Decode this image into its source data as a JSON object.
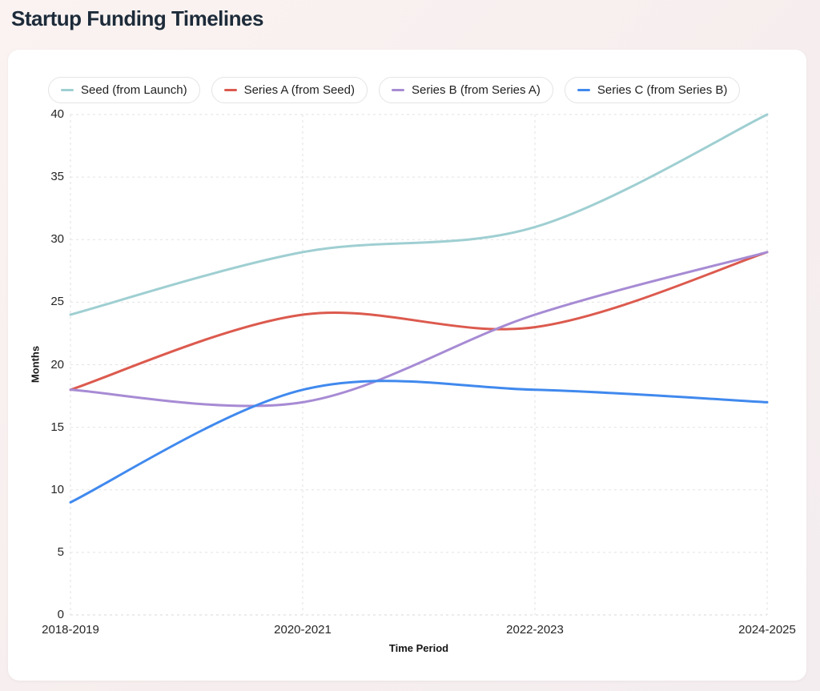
{
  "page": {
    "title": "Startup Funding Timelines",
    "background_color": "#f6eeee",
    "card_background": "#ffffff",
    "title_color": "#1d2b3a",
    "grid_color": "#e2e2e2"
  },
  "legend": {
    "items": [
      {
        "label": "Seed (from Launch)",
        "color": "#9fcfd2"
      },
      {
        "label": "Series A (from Seed)",
        "color": "#dc5a4e"
      },
      {
        "label": "Series B (from Series A)",
        "color": "#a78bd4"
      },
      {
        "label": "Series C (from Series B)",
        "color": "#4089ee"
      }
    ]
  },
  "chart_data": {
    "type": "line",
    "title": "Startup Funding Timelines",
    "categories": [
      "2018-2019",
      "2020-2021",
      "2022-2023",
      "2024-2025"
    ],
    "series": [
      {
        "name": "Seed (from Launch)",
        "color": "#9fcfd2",
        "values": [
          24,
          29,
          31,
          40
        ]
      },
      {
        "name": "Series A (from Seed)",
        "color": "#dc5a4e",
        "values": [
          18,
          24,
          23,
          29
        ]
      },
      {
        "name": "Series B (from Series A)",
        "color": "#a78bd4",
        "values": [
          18,
          17,
          24,
          29
        ]
      },
      {
        "name": "Series C (from Series B)",
        "color": "#4089ee",
        "values": [
          9,
          18,
          18,
          17
        ]
      }
    ],
    "xlabel": "Time Period",
    "ylabel": "Months",
    "ylim": [
      0,
      40
    ],
    "yticks": [
      0,
      5,
      10,
      15,
      20,
      25,
      30,
      35,
      40
    ],
    "grid": "dashed",
    "legend_position": "top",
    "line_style": "smooth"
  }
}
